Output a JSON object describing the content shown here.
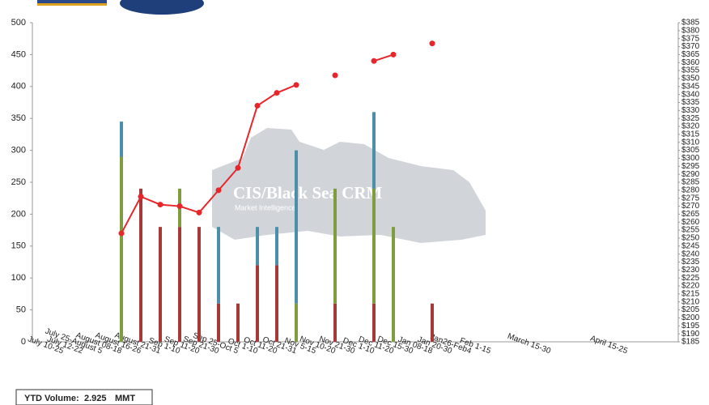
{
  "chart_data": {
    "type": "bar_line",
    "categories": [
      "July 10-25",
      "July 12-22",
      "July 25-August 5",
      "August 08-18",
      "August 16-26",
      "August 21-31",
      "Sep 1-10",
      "Sep 11-20",
      "Sep 21-30",
      "Sep 25-Oct 5",
      "Oct 1-10",
      "Oct 11-20",
      "Oct 21-31",
      "Nov 5-15",
      "Nov 10-20",
      "Nov 21-30",
      "Dec 1-10",
      "Dec 11-20",
      "Dec 15-30",
      "Jan 08-18",
      "Jan 20-30",
      "Jan26-Feb4",
      "Feb 1-15",
      "March 15-30",
      "April 15-25"
    ],
    "series": [
      {
        "color": "#a8393b",
        "values": [
          null,
          null,
          null,
          240,
          180,
          180,
          180,
          60,
          60,
          120,
          120,
          null,
          null,
          60,
          null,
          60,
          null,
          null,
          60,
          null,
          null,
          null,
          null,
          null,
          null
        ]
      },
      {
        "color": "#7f9c3e",
        "values": [
          null,
          null,
          290,
          null,
          null,
          60,
          null,
          null,
          null,
          null,
          null,
          60,
          null,
          180,
          null,
          180,
          180,
          null,
          null,
          null,
          null,
          null,
          null,
          null,
          null
        ]
      },
      {
        "color": "#4d8fab",
        "values": [
          null,
          null,
          55,
          null,
          null,
          null,
          null,
          120,
          null,
          60,
          60,
          240,
          null,
          null,
          null,
          120,
          null,
          null,
          null,
          null,
          null,
          null,
          null,
          null,
          null
        ]
      },
      {
        "color": "#e8262a",
        "axis": "y2",
        "values": [
          null,
          null,
          253,
          276,
          271,
          270,
          266,
          280,
          294,
          333,
          341,
          346,
          null,
          352,
          null,
          361,
          365,
          null,
          372,
          null,
          null,
          null,
          null,
          null,
          null
        ]
      }
    ],
    "ylim": [
      0,
      500
    ],
    "yticks": [
      0,
      50,
      100,
      150,
      200,
      250,
      300,
      350,
      400,
      450,
      500
    ],
    "y2lim": [
      185,
      385
    ],
    "y2ticks": [
      {
        "value": 185,
        "label": "$185"
      },
      {
        "value": 190,
        "label": "$190"
      },
      {
        "value": 195,
        "label": "$195"
      },
      {
        "value": 200,
        "label": "$200"
      },
      {
        "value": 205,
        "label": "$205"
      },
      {
        "value": 210,
        "label": "$210"
      },
      {
        "value": 215,
        "label": "$215"
      },
      {
        "value": 220,
        "label": "$220"
      },
      {
        "value": 225,
        "label": "$225"
      },
      {
        "value": 230,
        "label": "$230"
      },
      {
        "value": 235,
        "label": "$235"
      },
      {
        "value": 240,
        "label": "$240"
      },
      {
        "value": 245,
        "label": "$245"
      },
      {
        "value": 250,
        "label": "$250"
      },
      {
        "value": 255,
        "label": "$255"
      },
      {
        "value": 260,
        "label": "$260"
      },
      {
        "value": 265,
        "label": "$265"
      },
      {
        "value": 270,
        "label": "$270"
      },
      {
        "value": 275,
        "label": "$275"
      },
      {
        "value": 280,
        "label": "$280"
      },
      {
        "value": 285,
        "label": "$285"
      },
      {
        "value": 290,
        "label": "$290"
      },
      {
        "value": 295,
        "label": "$295"
      },
      {
        "value": 300,
        "label": "$300"
      },
      {
        "value": 305,
        "label": "$305"
      },
      {
        "value": 310,
        "label": "$310"
      },
      {
        "value": 315,
        "label": "$315"
      },
      {
        "value": 320,
        "label": "$320"
      },
      {
        "value": 325,
        "label": "$325"
      },
      {
        "value": 330,
        "label": "$330"
      },
      {
        "value": 335,
        "label": "$335"
      },
      {
        "value": 340,
        "label": "$340"
      },
      {
        "value": 345,
        "label": "$345"
      },
      {
        "value": 350,
        "label": "$350"
      },
      {
        "value": 355,
        "label": "$355"
      },
      {
        "value": 360,
        "label": "$360"
      },
      {
        "value": 365,
        "label": "$365"
      },
      {
        "value": 370,
        "label": "$370"
      },
      {
        "value": 375,
        "label": "$375"
      },
      {
        "value": 380,
        "label": "$380"
      },
      {
        "value": 385,
        "label": "$385"
      }
    ],
    "watermark": {
      "title": "CIS/Black Sea CRM",
      "subtitle": "Market Intelligence"
    },
    "footer": {
      "label": "YTD Volume:",
      "value": "2.925",
      "unit": "MMT"
    }
  }
}
